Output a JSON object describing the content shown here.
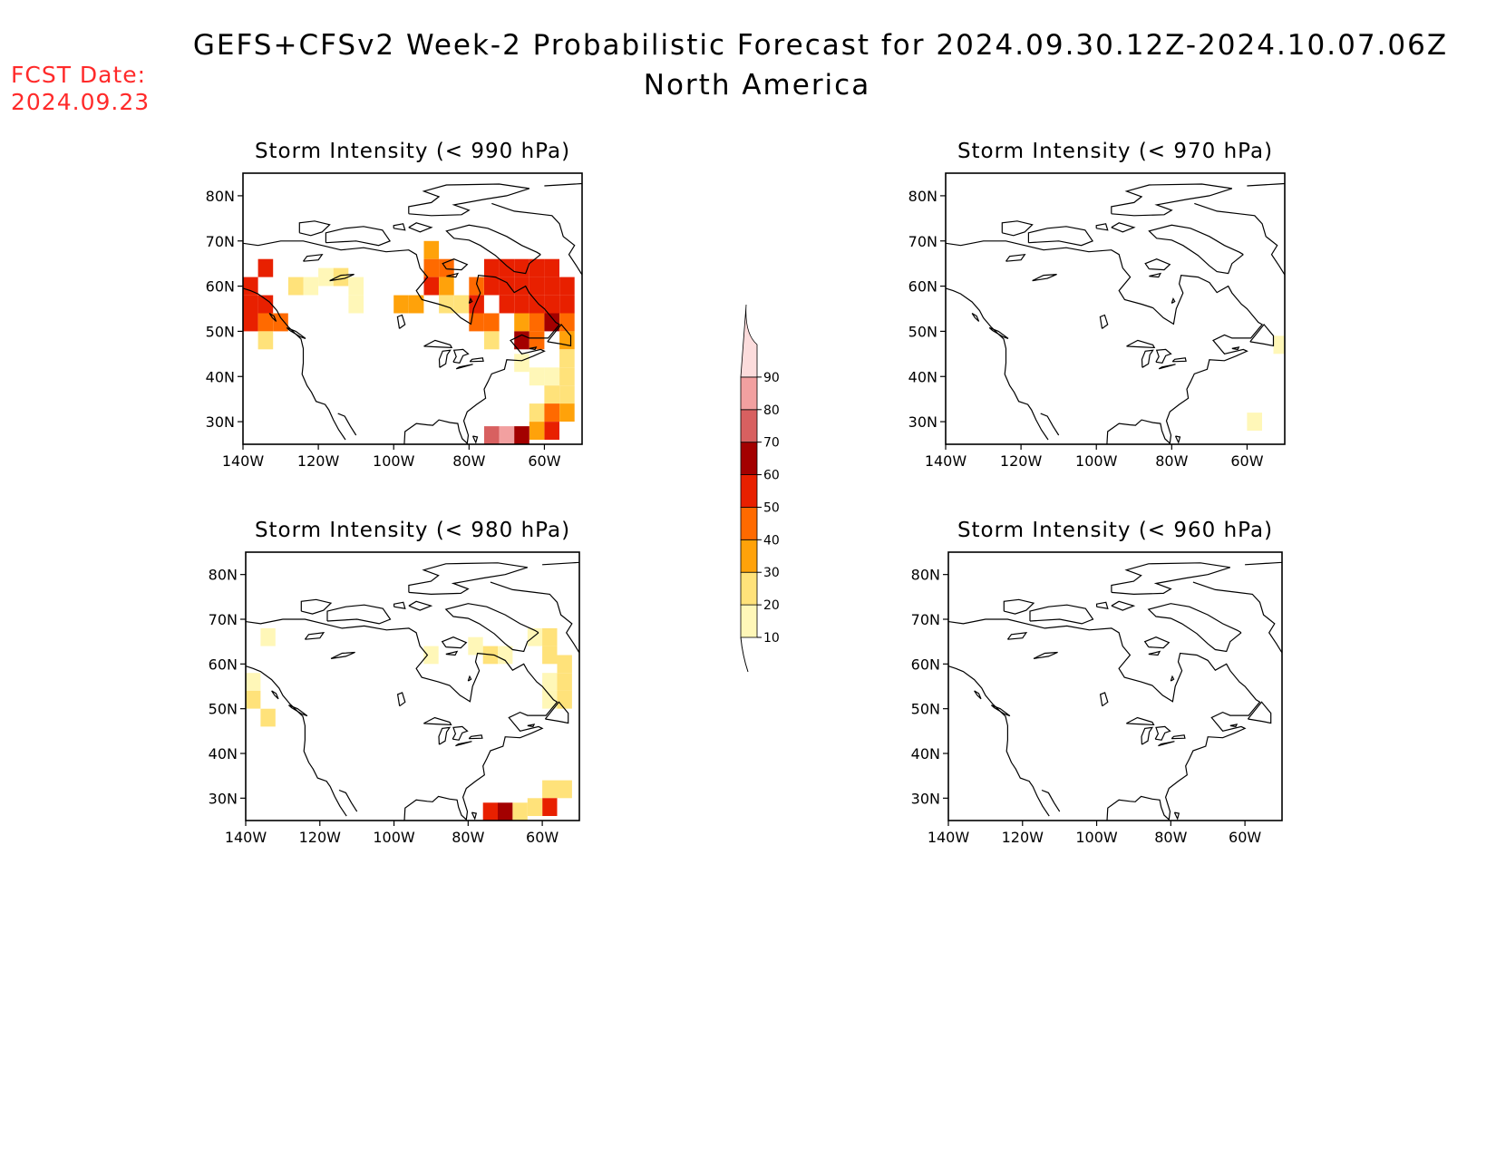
{
  "header": {
    "title": "GEFS+CFSv2 Week-2 Probabilistic Forecast for 2024.09.30.12Z-2024.10.07.06Z",
    "subtitle": "North America",
    "fcst_label": "FCST Date:",
    "fcst_date": "2024.09.23"
  },
  "colors": {
    "title_text": "#000000",
    "fcst_text": "#ff2a2a",
    "coastline": "#000000"
  },
  "axes": {
    "lon_ticks": [
      "140W",
      "120W",
      "100W",
      "80W",
      "60W"
    ],
    "lat_ticks": [
      "80N",
      "70N",
      "60N",
      "50N",
      "40N",
      "30N"
    ],
    "lon_values": [
      -140,
      -120,
      -100,
      -80,
      -60
    ],
    "lat_values": [
      80,
      70,
      60,
      50,
      40,
      30
    ],
    "lon_range": [
      -140,
      -50
    ],
    "lat_range": [
      25,
      85
    ]
  },
  "colorbar": {
    "labels": [
      "10",
      "20",
      "30",
      "40",
      "50",
      "60",
      "70",
      "80",
      "90"
    ],
    "levels": [
      10,
      20,
      30,
      40,
      50,
      60,
      70,
      80,
      90
    ],
    "colors": [
      "#fff7b8",
      "#ffe27a",
      "#ffa20a",
      "#ff6a00",
      "#e82000",
      "#a30000",
      "#d86060",
      "#f2a0a0",
      "#fcdcdc"
    ],
    "units": ""
  },
  "panels": [
    {
      "title": "Storm Intensity (< 990 hPa)",
      "cells": [
        {
          "lon": -138,
          "lat": 60,
          "prob": 50
        },
        {
          "lon": -138,
          "lat": 56,
          "prob": 55
        },
        {
          "lon": -138,
          "lat": 52,
          "prob": 50
        },
        {
          "lon": -134,
          "lat": 56,
          "prob": 55
        },
        {
          "lon": -134,
          "lat": 52,
          "prob": 45
        },
        {
          "lon": -134,
          "lat": 48,
          "prob": 20
        },
        {
          "lon": -134,
          "lat": 64,
          "prob": 50
        },
        {
          "lon": -130,
          "lat": 52,
          "prob": 40
        },
        {
          "lon": -126,
          "lat": 60,
          "prob": 20
        },
        {
          "lon": -122,
          "lat": 60,
          "prob": 15
        },
        {
          "lon": -118,
          "lat": 62,
          "prob": 15
        },
        {
          "lon": -114,
          "lat": 62,
          "prob": 20
        },
        {
          "lon": -110,
          "lat": 60,
          "prob": 15
        },
        {
          "lon": -110,
          "lat": 56,
          "prob": 15
        },
        {
          "lon": -98,
          "lat": 56,
          "prob": 35
        },
        {
          "lon": -94,
          "lat": 56,
          "prob": 35
        },
        {
          "lon": -90,
          "lat": 68,
          "prob": 35
        },
        {
          "lon": -90,
          "lat": 64,
          "prob": 45
        },
        {
          "lon": -90,
          "lat": 60,
          "prob": 50
        },
        {
          "lon": -86,
          "lat": 64,
          "prob": 40
        },
        {
          "lon": -86,
          "lat": 60,
          "prob": 30
        },
        {
          "lon": -86,
          "lat": 56,
          "prob": 25
        },
        {
          "lon": -82,
          "lat": 56,
          "prob": 25
        },
        {
          "lon": -78,
          "lat": 60,
          "prob": 40
        },
        {
          "lon": -78,
          "lat": 56,
          "prob": 50
        },
        {
          "lon": -78,
          "lat": 52,
          "prob": 40
        },
        {
          "lon": -74,
          "lat": 64,
          "prob": 55
        },
        {
          "lon": -74,
          "lat": 60,
          "prob": 50
        },
        {
          "lon": -74,
          "lat": 52,
          "prob": 40
        },
        {
          "lon": -74,
          "lat": 48,
          "prob": 25
        },
        {
          "lon": -70,
          "lat": 64,
          "prob": 50
        },
        {
          "lon": -70,
          "lat": 60,
          "prob": 50
        },
        {
          "lon": -70,
          "lat": 56,
          "prob": 50
        },
        {
          "lon": -66,
          "lat": 64,
          "prob": 50
        },
        {
          "lon": -66,
          "lat": 60,
          "prob": 55
        },
        {
          "lon": -66,
          "lat": 56,
          "prob": 50
        },
        {
          "lon": -66,
          "lat": 52,
          "prob": 35
        },
        {
          "lon": -66,
          "lat": 48,
          "prob": 60
        },
        {
          "lon": -62,
          "lat": 64,
          "prob": 55
        },
        {
          "lon": -62,
          "lat": 60,
          "prob": 50
        },
        {
          "lon": -62,
          "lat": 56,
          "prob": 55
        },
        {
          "lon": -62,
          "lat": 52,
          "prob": 40
        },
        {
          "lon": -62,
          "lat": 48,
          "prob": 45
        },
        {
          "lon": -58,
          "lat": 64,
          "prob": 50
        },
        {
          "lon": -58,
          "lat": 60,
          "prob": 55
        },
        {
          "lon": -58,
          "lat": 56,
          "prob": 50
        },
        {
          "lon": -58,
          "lat": 52,
          "prob": 60
        },
        {
          "lon": -54,
          "lat": 60,
          "prob": 50
        },
        {
          "lon": -54,
          "lat": 56,
          "prob": 55
        },
        {
          "lon": -54,
          "lat": 52,
          "prob": 45
        },
        {
          "lon": -54,
          "lat": 48,
          "prob": 35
        },
        {
          "lon": -54,
          "lat": 44,
          "prob": 20
        },
        {
          "lon": -62,
          "lat": 40,
          "prob": 15
        },
        {
          "lon": -58,
          "lat": 40,
          "prob": 15
        },
        {
          "lon": -54,
          "lat": 40,
          "prob": 20
        },
        {
          "lon": -58,
          "lat": 36,
          "prob": 20
        },
        {
          "lon": -54,
          "lat": 36,
          "prob": 25
        },
        {
          "lon": -62,
          "lat": 32,
          "prob": 25
        },
        {
          "lon": -58,
          "lat": 32,
          "prob": 45
        },
        {
          "lon": -54,
          "lat": 32,
          "prob": 35
        },
        {
          "lon": -58,
          "lat": 28,
          "prob": 55
        },
        {
          "lon": -62,
          "lat": 28,
          "prob": 35
        },
        {
          "lon": -74,
          "lat": 27,
          "prob": 70
        },
        {
          "lon": -70,
          "lat": 27,
          "prob": 80
        },
        {
          "lon": -66,
          "lat": 27,
          "prob": 65
        },
        {
          "lon": -66,
          "lat": 43,
          "prob": 15
        }
      ]
    },
    {
      "title": "Storm Intensity (< 970 hPa)",
      "cells": [
        {
          "lon": -58,
          "lat": 30,
          "prob": 15
        },
        {
          "lon": -51,
          "lat": 47,
          "prob": 15
        }
      ]
    },
    {
      "title": "Storm Intensity (< 980 hPa)",
      "cells": [
        {
          "lon": -138,
          "lat": 56,
          "prob": 15
        },
        {
          "lon": -138,
          "lat": 52,
          "prob": 20
        },
        {
          "lon": -134,
          "lat": 48,
          "prob": 20
        },
        {
          "lon": -134,
          "lat": 66,
          "prob": 15
        },
        {
          "lon": -90,
          "lat": 62,
          "prob": 15
        },
        {
          "lon": -78,
          "lat": 64,
          "prob": 15
        },
        {
          "lon": -74,
          "lat": 62,
          "prob": 20
        },
        {
          "lon": -70,
          "lat": 62,
          "prob": 15
        },
        {
          "lon": -62,
          "lat": 66,
          "prob": 15
        },
        {
          "lon": -58,
          "lat": 66,
          "prob": 20
        },
        {
          "lon": -58,
          "lat": 62,
          "prob": 20
        },
        {
          "lon": -54,
          "lat": 60,
          "prob": 25
        },
        {
          "lon": -54,
          "lat": 56,
          "prob": 20
        },
        {
          "lon": -58,
          "lat": 56,
          "prob": 15
        },
        {
          "lon": -58,
          "lat": 52,
          "prob": 15
        },
        {
          "lon": -54,
          "lat": 52,
          "prob": 20
        },
        {
          "lon": -58,
          "lat": 32,
          "prob": 25
        },
        {
          "lon": -58,
          "lat": 28,
          "prob": 50
        },
        {
          "lon": -54,
          "lat": 32,
          "prob": 20
        },
        {
          "lon": -62,
          "lat": 28,
          "prob": 20
        },
        {
          "lon": -74,
          "lat": 27,
          "prob": 55
        },
        {
          "lon": -70,
          "lat": 27,
          "prob": 65
        },
        {
          "lon": -66,
          "lat": 27,
          "prob": 25
        }
      ]
    },
    {
      "title": "Storm Intensity (< 960 hPa)",
      "cells": []
    }
  ]
}
